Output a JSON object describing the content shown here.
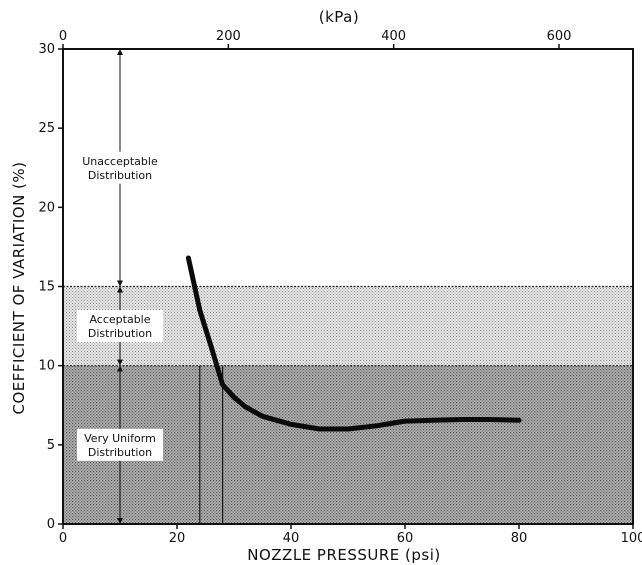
{
  "chart_data": {
    "type": "line",
    "xlabel": "NOZZLE PRESSURE (psi)",
    "ylabel": "COEFFICIENT OF VARIATION (%)",
    "x2label": "(kPa)",
    "xlim": [
      0,
      100
    ],
    "ylim": [
      0,
      30
    ],
    "x2lim_kpa": [
      0,
      689.5
    ],
    "xticks": [
      0,
      20,
      40,
      60,
      80,
      100
    ],
    "yticks": [
      0,
      5,
      10,
      15,
      20,
      25,
      30
    ],
    "x2ticks": [
      0,
      200,
      400,
      600
    ],
    "grid": false,
    "zones": [
      {
        "name": "Unacceptable",
        "label_lines": [
          "Unacceptable",
          "Distribution"
        ],
        "y_range": [
          15,
          30
        ],
        "fill": "none"
      },
      {
        "name": "Acceptable",
        "label_lines": [
          "Acceptable",
          "Distribution"
        ],
        "y_range": [
          10,
          15
        ],
        "fill": "light-stipple"
      },
      {
        "name": "Very Uniform",
        "label_lines": [
          "Very Uniform",
          "Distribution"
        ],
        "y_range": [
          0,
          10
        ],
        "fill": "dark-stipple"
      }
    ],
    "zone_arrow_x": 10,
    "reference_lines_x": [
      24,
      28
    ],
    "series": [
      {
        "x": [
          22,
          24,
          26,
          28,
          30,
          32,
          35,
          40,
          45,
          50,
          55,
          60,
          65,
          70,
          75,
          80
        ],
        "y": [
          16.8,
          13.5,
          11.2,
          8.8,
          8.0,
          7.4,
          6.8,
          6.3,
          6.0,
          6.0,
          6.2,
          6.5,
          6.55,
          6.6,
          6.6,
          6.55
        ]
      }
    ]
  }
}
